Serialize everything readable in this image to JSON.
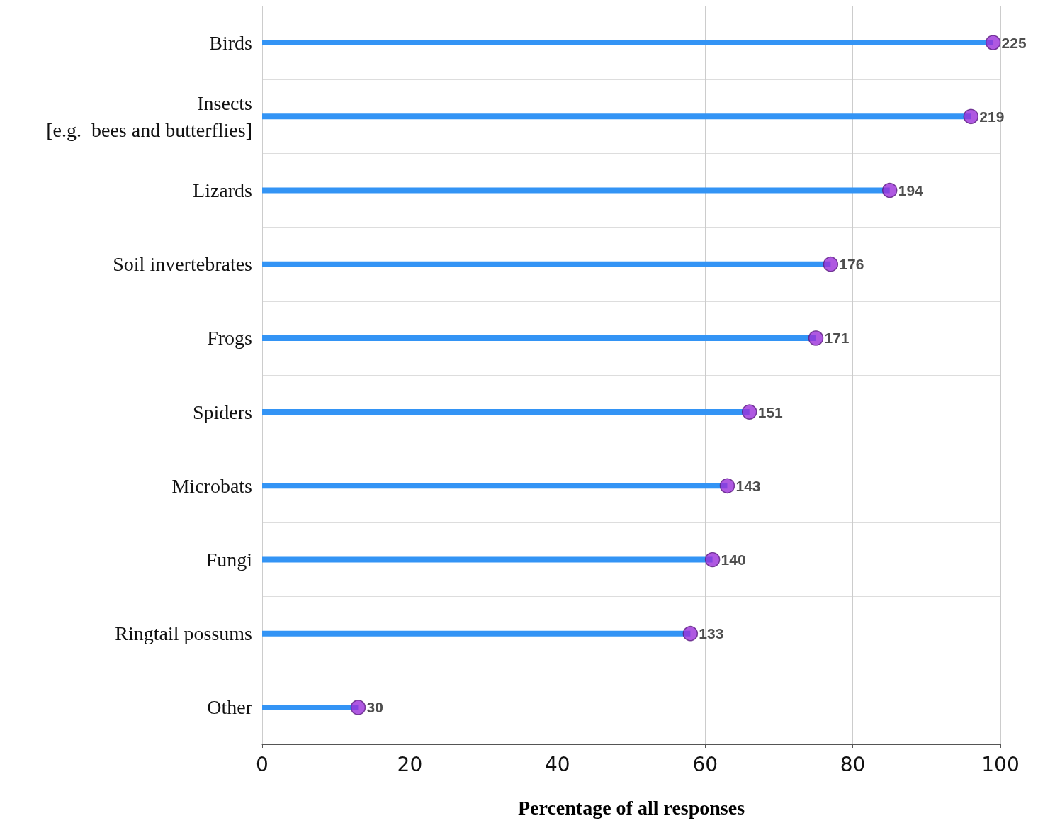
{
  "chart_data": {
    "type": "lollipop",
    "orientation": "horizontal",
    "xlabel": "Percentage of all responses",
    "categories": [
      "Birds",
      "Insects\n[e.g.  bees and butterflies]",
      "Lizards",
      "Soil invertebrates",
      "Frogs",
      "Spiders",
      "Microbats",
      "Fungi",
      "Ringtail possums",
      "Other"
    ],
    "series": [
      {
        "color": "#9b30d9",
        "values": [
          99,
          96,
          85,
          77,
          75,
          66,
          63,
          61,
          58,
          13
        ]
      }
    ],
    "annotations": [
      {
        "text": "225",
        "x": 99,
        "y": "Birds"
      },
      {
        "text": "219",
        "x": 96,
        "y": "Insects\n[e.g.  bees and butterflies]"
      },
      {
        "text": "194",
        "x": 85,
        "y": "Lizards"
      },
      {
        "text": "176",
        "x": 77,
        "y": "Soil invertebrates"
      },
      {
        "text": "171",
        "x": 75,
        "y": "Frogs"
      },
      {
        "text": "151",
        "x": 66,
        "y": "Spiders"
      },
      {
        "text": "143",
        "x": 63,
        "y": "Microbats"
      },
      {
        "text": "140",
        "x": 61,
        "y": "Fungi"
      },
      {
        "text": "133",
        "x": 58,
        "y": "Ringtail possums"
      },
      {
        "text": "30",
        "x": 13,
        "y": "Other"
      }
    ],
    "xlim": [
      0,
      100
    ],
    "xticks": [
      0,
      20,
      40,
      60,
      80,
      100
    ],
    "grid": true,
    "marker": "circle"
  }
}
